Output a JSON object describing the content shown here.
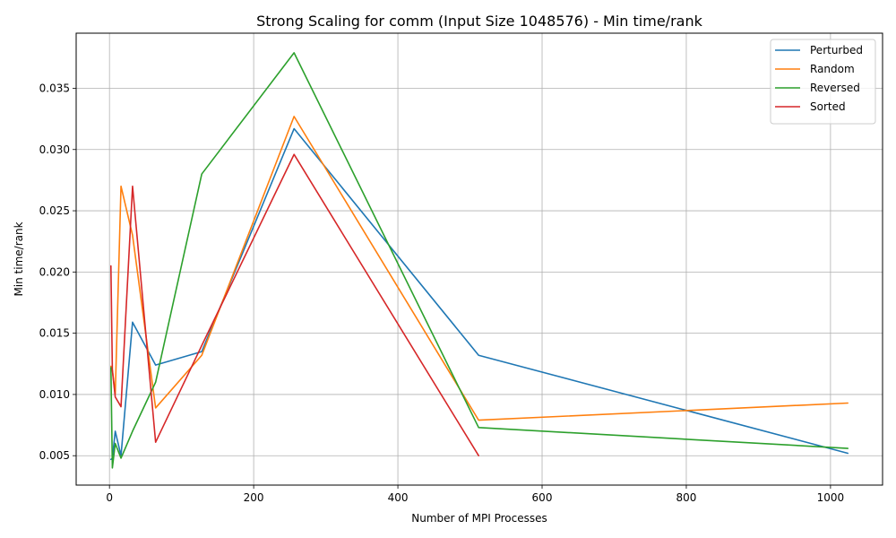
{
  "chart_data": {
    "type": "line",
    "title": "Strong Scaling for comm (Input Size 1048576) - Min time/rank",
    "xlabel": "Number of MPI Processes",
    "ylabel": "Min time/rank",
    "xlim": [
      -46.2,
      1072.2
    ],
    "ylim": [
      0.0026,
      0.0395
    ],
    "xticks": [
      0,
      200,
      400,
      600,
      800,
      1000
    ],
    "xtick_labels": [
      "0",
      "200",
      "400",
      "600",
      "800",
      "1000"
    ],
    "yticks": [
      0.005,
      0.01,
      0.015,
      0.02,
      0.025,
      0.03,
      0.035
    ],
    "ytick_labels": [
      "0.005",
      "0.010",
      "0.015",
      "0.020",
      "0.025",
      "0.030",
      "0.035"
    ],
    "grid": true,
    "legend_position": "top-right",
    "series": [
      {
        "name": "Perturbed",
        "color": "#1f77b4",
        "x": [
          2,
          4,
          8,
          16,
          32,
          64,
          128,
          256,
          512,
          1024
        ],
        "y": [
          0.0047,
          0.0048,
          0.007,
          0.005,
          0.0159,
          0.0124,
          0.0135,
          0.0317,
          0.0132,
          0.0052
        ]
      },
      {
        "name": "Random",
        "color": "#ff7f0e",
        "x": [
          2,
          4,
          8,
          16,
          32,
          64,
          128,
          256,
          512,
          1024
        ],
        "y": [
          0.0123,
          0.012,
          0.01,
          0.027,
          0.023,
          0.0089,
          0.0132,
          0.0327,
          0.0079,
          0.0093
        ]
      },
      {
        "name": "Reversed",
        "color": "#2ca02c",
        "x": [
          2,
          4,
          8,
          16,
          32,
          64,
          128,
          256,
          512,
          1024
        ],
        "y": [
          0.0122,
          0.004,
          0.006,
          0.0048,
          0.007,
          0.011,
          0.028,
          0.0379,
          0.0073,
          0.0056
        ]
      },
      {
        "name": "Sorted",
        "color": "#d62728",
        "x": [
          2,
          4,
          8,
          16,
          32,
          64,
          128,
          256,
          512
        ],
        "y": [
          0.0205,
          0.012,
          0.0098,
          0.009,
          0.027,
          0.0061,
          0.014,
          0.0296,
          0.005
        ]
      }
    ]
  }
}
